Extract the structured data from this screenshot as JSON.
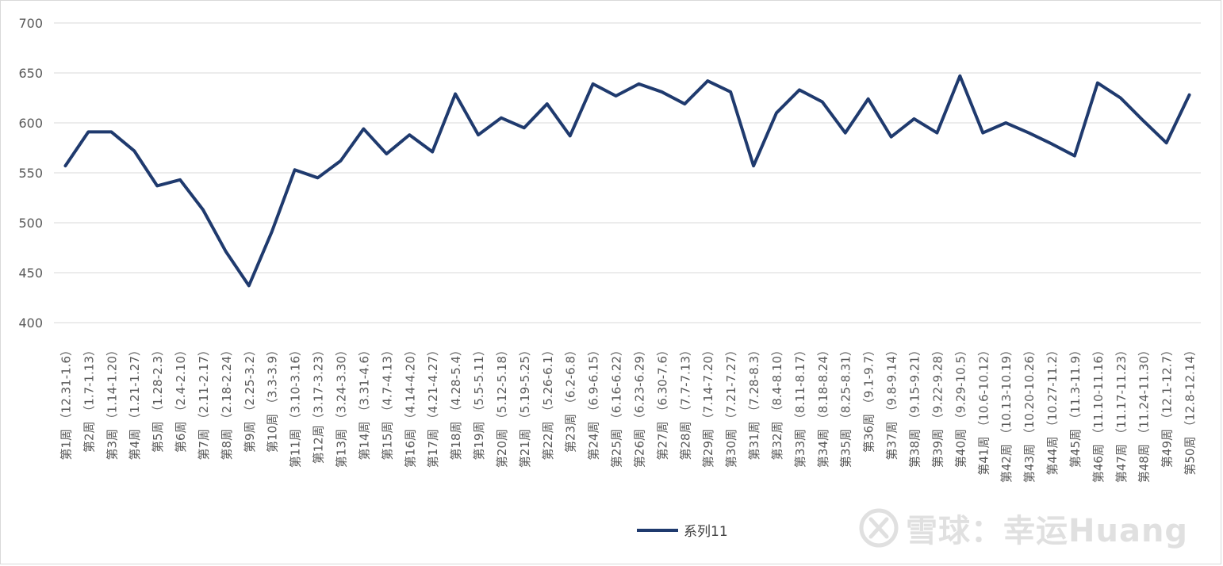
{
  "chart_data": {
    "type": "line",
    "title": "",
    "xlabel": "",
    "ylabel": "",
    "ylim": [
      400,
      700
    ],
    "yticks": [
      400,
      450,
      500,
      550,
      600,
      650,
      700
    ],
    "grid": true,
    "legend_position": "bottom",
    "categories": [
      "第1周 （12.31-1.6）",
      "第2周 （1.7-1.13）",
      "第3周 （1.14-1.20）",
      "第4周 （1.21-1.27）",
      "第5周 （1.28-2.3）",
      "第6周 （2.4-2.10）",
      "第7周 （2.11-2.17）",
      "第8周 （2.18-2.24）",
      "第9周 （2.25-3.2）",
      "第10周 （3.3-3.9）",
      "第11周 （3.10-3.16）",
      "第12周（3.17-3.23）",
      "第13周 （3.24-3.30）",
      "第14周 （3.31-4.6）",
      "第15周 （4.7-4.13）",
      "第16周 （4.14-4.20）",
      "第17周 （4.21-4.27）",
      "第18周 （4.28-5.4）",
      "第19周 （5.5-5.11）",
      "第20周 （5.12-5.18）",
      "第21周 （5.19-5.25）",
      "第22周 （5.26-6.1）",
      "第23周 （6.2-6.8）",
      "第24周 （6.9-6.15）",
      "第25周 （6.16-6.22）",
      "第26周 （6.23-6.29）",
      "第27周 （6.30-7.6）",
      "第28周 （7.7-7.13）",
      "第29周 （7.14-7.20）",
      "第30周 （7.21-7.27）",
      "第31周 （7.28-8.3）",
      "第32周 （8.4-8.10）",
      "第33周 （8.11-8.17）",
      "第34周 （8.18-8.24）",
      "第35周 （8.25-8.31）",
      "第36周 （9.1-9.7）",
      "第37周 （9.8-9.14）",
      "第38周 （9.15-9.21）",
      "第39周 （9.22-9.28）",
      "第40周 （9.29-10.5）",
      "第41周 （10.6-10.12）",
      "第42周 （10.13-10.19）",
      "第43周 （10.20-10.26）",
      "第44周 （10.27-11.2）",
      "第45周 （11.3-11.9）",
      "第46周 （11.10-11.16）",
      "第47周 （11.17-11.23）",
      "第48周 （11.24-11.30）",
      "第49周 （12.1-12.7）",
      "第50周 （12.8-12.14）"
    ],
    "series": [
      {
        "name": "系列11",
        "color": "#1f3a6e",
        "values": [
          557,
          591,
          591,
          572,
          537,
          543,
          513,
          471,
          437,
          491,
          553,
          545,
          562,
          594,
          569,
          588,
          571,
          629,
          588,
          605,
          595,
          619,
          587,
          639,
          627,
          639,
          631,
          619,
          642,
          631,
          557,
          610,
          633,
          621,
          590,
          624,
          586,
          604,
          590,
          647,
          590,
          600,
          590,
          579,
          567,
          640,
          625,
          602,
          580,
          628
        ]
      }
    ]
  },
  "watermark": {
    "text": "雪球：幸运Huang"
  }
}
